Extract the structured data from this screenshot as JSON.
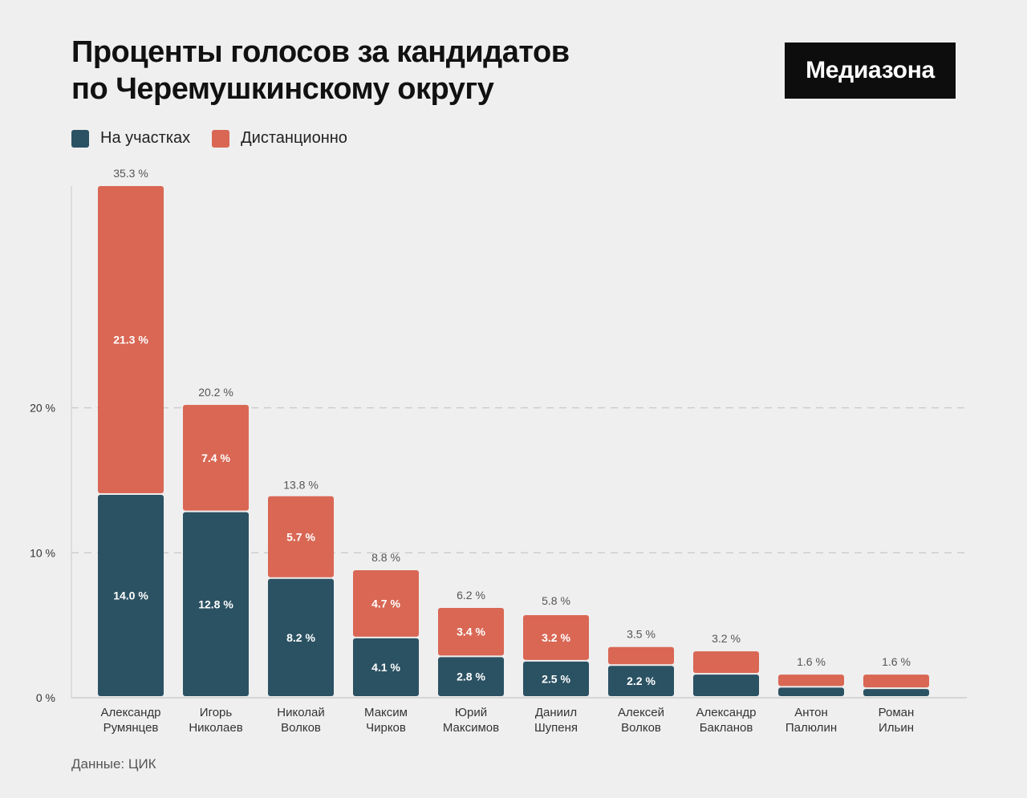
{
  "title": {
    "line1": "Проценты голосов за кандидатов",
    "line2": "по Черемушкинскому округу"
  },
  "logo": "Медиазона",
  "source": "Данные: ЦИК",
  "colors": {
    "on_site": "#2b5263",
    "remote": "#d96754",
    "background": "#efefef"
  },
  "chart_data": {
    "type": "bar",
    "stacked": true,
    "categories": [
      [
        "Александр",
        "Румянцев"
      ],
      [
        "Игорь",
        "Николаев"
      ],
      [
        "Николай",
        "Волков"
      ],
      [
        "Максим",
        "Чирков"
      ],
      [
        "Юрий",
        "Максимов"
      ],
      [
        "Даниил",
        "Шупеня"
      ],
      [
        "Алексей",
        "Волков"
      ],
      [
        "Александр",
        "Бакланов"
      ],
      [
        "Антон",
        "Палюлин"
      ],
      [
        "Роман",
        "Ильин"
      ]
    ],
    "series": [
      {
        "name": "На участках",
        "values": [
          14.0,
          12.8,
          8.2,
          4.1,
          2.8,
          2.5,
          2.2,
          1.6,
          0.7,
          0.6
        ],
        "labels": [
          "14.0 %",
          "12.8 %",
          "8.2 %",
          "4.1 %",
          "2.8 %",
          "2.5 %",
          "2.2 %",
          "",
          "",
          ""
        ]
      },
      {
        "name": "Дистанционно",
        "values": [
          21.3,
          7.4,
          5.7,
          4.7,
          3.4,
          3.2,
          1.3,
          1.6,
          0.9,
          1.0
        ],
        "labels": [
          "21.3 %",
          "7.4 %",
          "5.7 %",
          "4.7 %",
          "3.4 %",
          "3.2 %",
          "",
          "",
          "",
          ""
        ]
      }
    ],
    "totals": [
      35.3,
      20.2,
      13.8,
      8.8,
      6.2,
      5.8,
      3.5,
      3.2,
      1.6,
      1.6
    ],
    "total_labels": [
      "35.3 %",
      "20.2 %",
      "13.8 %",
      "8.8 %",
      "6.2 %",
      "5.8 %",
      "3.5 %",
      "3.2 %",
      "1.6 %",
      "1.6 %"
    ],
    "yticks": [
      0,
      10,
      20
    ],
    "ytick_labels": [
      "0 %",
      "10 %",
      "20 %"
    ],
    "ylim": [
      0,
      35.3
    ],
    "grid": true,
    "legend_position": "top-left"
  }
}
